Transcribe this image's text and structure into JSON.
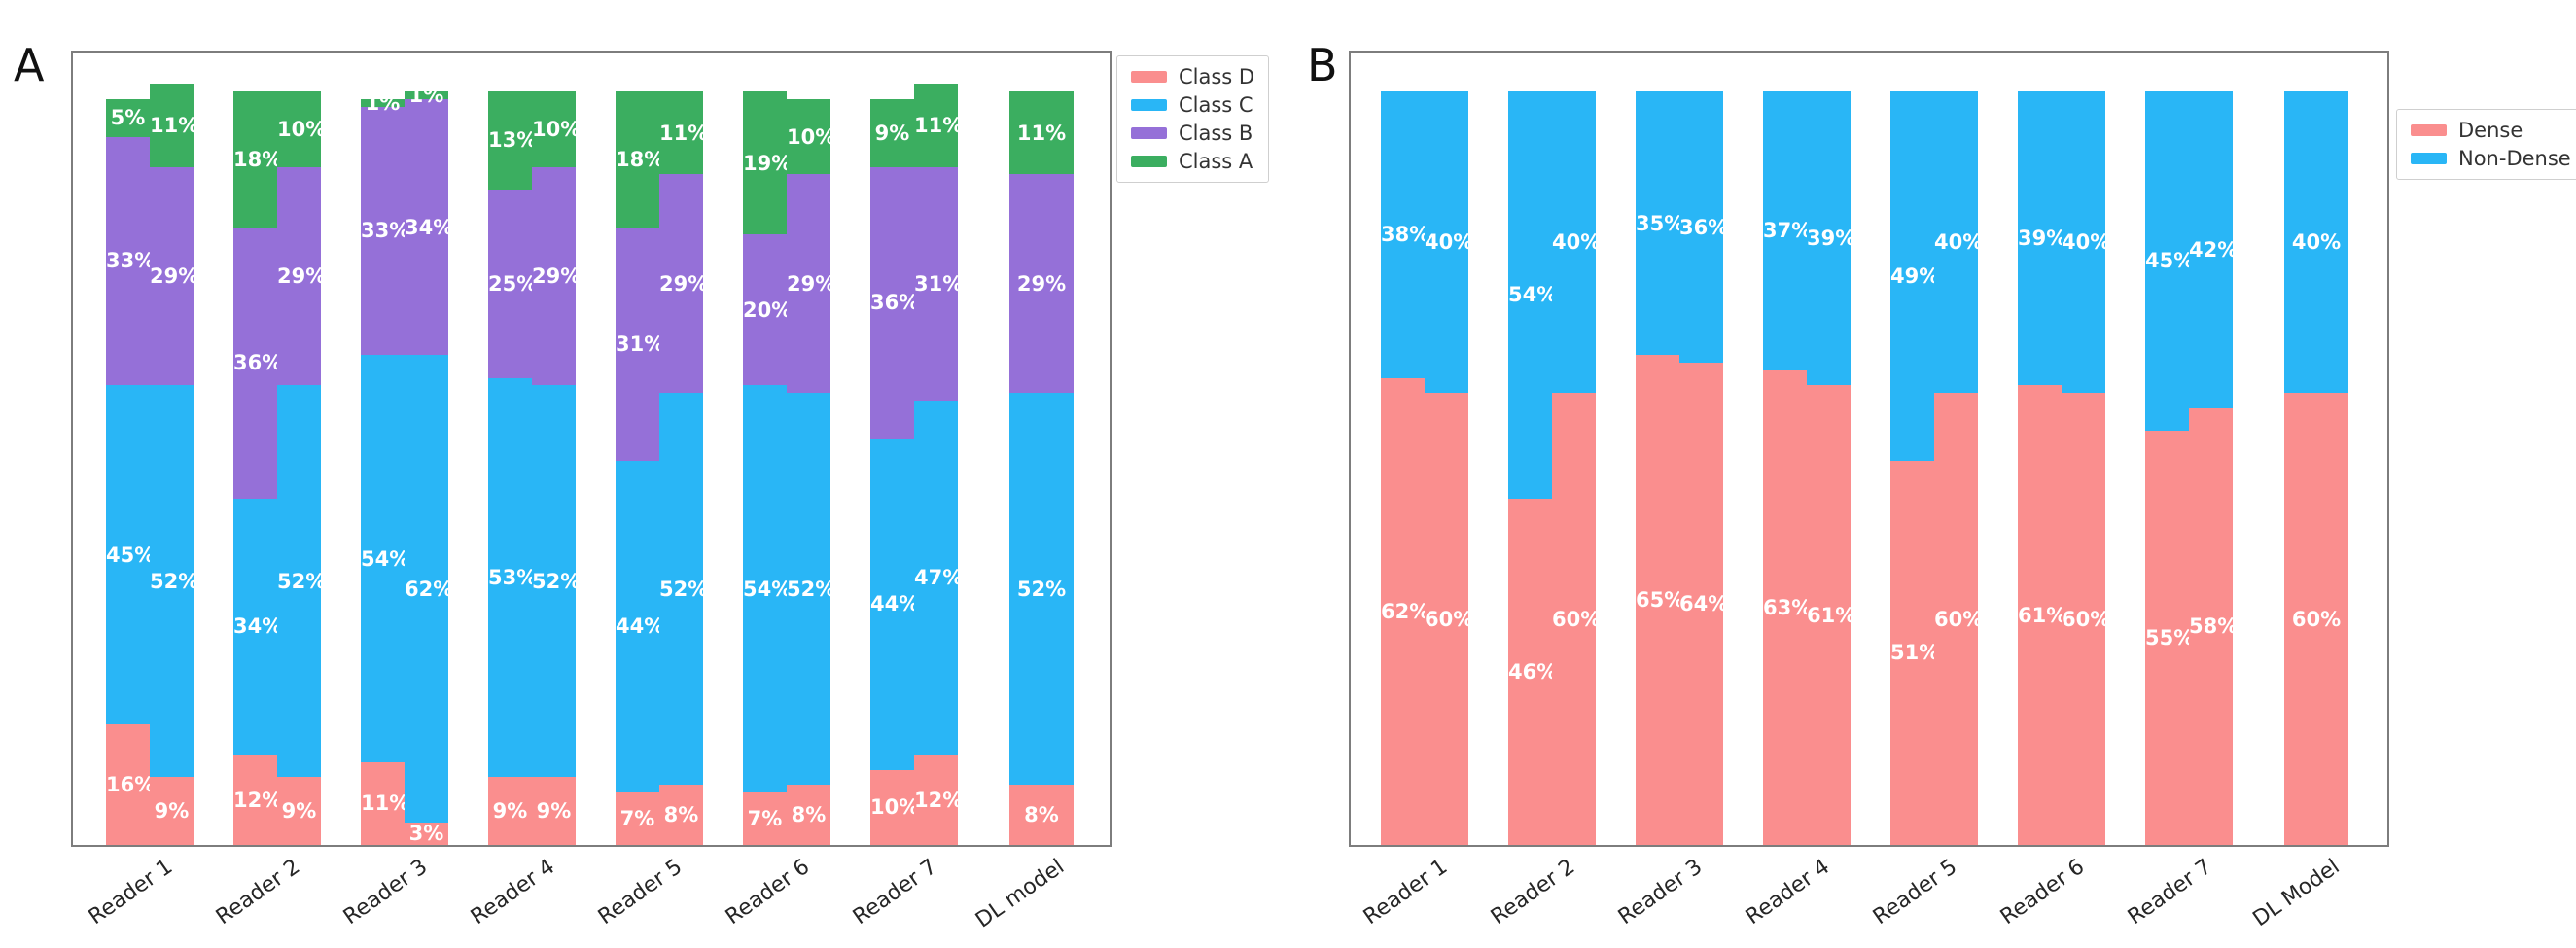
{
  "panels": {
    "a": {
      "title": "A"
    },
    "b": {
      "title": "B"
    }
  },
  "chart_data": [
    {
      "type": "bar",
      "panel": "A",
      "stacked": true,
      "unit": "%",
      "ylim": [
        0,
        100
      ],
      "grid": false,
      "bar_pairing": "left bar = reader assessment, right bar = paired comparison; DL model drawn as single wider bar",
      "stack_order_bottom_to_top": [
        "Class D",
        "Class C",
        "Class B",
        "Class A"
      ],
      "legend": {
        "position": "outside-top-right",
        "entries": [
          {
            "label": "Class D",
            "color": "#FA8E8E"
          },
          {
            "label": "Class C",
            "color": "#29B6F6"
          },
          {
            "label": "Class B",
            "color": "#9570D8"
          },
          {
            "label": "Class A",
            "color": "#3BAE60"
          }
        ]
      },
      "categories": [
        "Reader 1",
        "Reader 2",
        "Reader 3",
        "Reader 4",
        "Reader 5",
        "Reader 6",
        "Reader 7",
        "DL model"
      ],
      "groups": [
        {
          "category": "Reader 1",
          "bars": [
            [
              16,
              45,
              33,
              5
            ],
            [
              9,
              52,
              29,
              11
            ]
          ]
        },
        {
          "category": "Reader 2",
          "bars": [
            [
              12,
              34,
              36,
              18
            ],
            [
              9,
              52,
              29,
              10
            ]
          ]
        },
        {
          "category": "Reader 3",
          "bars": [
            [
              11,
              54,
              33,
              1
            ],
            [
              3,
              62,
              34,
              1
            ]
          ]
        },
        {
          "category": "Reader 4",
          "bars": [
            [
              9,
              53,
              25,
              13
            ],
            [
              9,
              52,
              29,
              10
            ]
          ]
        },
        {
          "category": "Reader 5",
          "bars": [
            [
              7,
              44,
              31,
              18
            ],
            [
              8,
              52,
              29,
              11
            ]
          ]
        },
        {
          "category": "Reader 6",
          "bars": [
            [
              7,
              54,
              20,
              19
            ],
            [
              8,
              52,
              29,
              10
            ]
          ]
        },
        {
          "category": "Reader 7",
          "bars": [
            [
              10,
              44,
              36,
              9
            ],
            [
              12,
              47,
              31,
              11
            ]
          ]
        },
        {
          "category": "DL model",
          "bars": [
            [
              8,
              52,
              29,
              11
            ]
          ]
        }
      ]
    },
    {
      "type": "bar",
      "panel": "B",
      "stacked": true,
      "unit": "%",
      "ylim": [
        0,
        100
      ],
      "grid": false,
      "bar_pairing": "left bar = reader assessment, right bar = paired comparison; DL Model drawn as single wider bar",
      "stack_order_bottom_to_top": [
        "Dense",
        "Non-Dense"
      ],
      "legend": {
        "position": "outside-top-right",
        "entries": [
          {
            "label": "Dense",
            "color": "#FA8E8E"
          },
          {
            "label": "Non-Dense",
            "color": "#29B6F6"
          }
        ]
      },
      "categories": [
        "Reader 1",
        "Reader 2",
        "Reader 3",
        "Reader 4",
        "Reader 5",
        "Reader 6",
        "Reader 7",
        "DL Model"
      ],
      "groups": [
        {
          "category": "Reader 1",
          "bars": [
            [
              62,
              38
            ],
            [
              60,
              40
            ]
          ]
        },
        {
          "category": "Reader 2",
          "bars": [
            [
              46,
              54
            ],
            [
              60,
              40
            ]
          ]
        },
        {
          "category": "Reader 3",
          "bars": [
            [
              65,
              35
            ],
            [
              64,
              36
            ]
          ]
        },
        {
          "category": "Reader 4",
          "bars": [
            [
              63,
              37
            ],
            [
              61,
              39
            ]
          ]
        },
        {
          "category": "Reader 5",
          "bars": [
            [
              51,
              49
            ],
            [
              60,
              40
            ]
          ]
        },
        {
          "category": "Reader 6",
          "bars": [
            [
              61,
              39
            ],
            [
              60,
              40
            ]
          ]
        },
        {
          "category": "Reader 7",
          "bars": [
            [
              55,
              45
            ],
            [
              58,
              42
            ]
          ]
        },
        {
          "category": "DL Model",
          "bars": [
            [
              60,
              40
            ]
          ]
        }
      ]
    }
  ]
}
